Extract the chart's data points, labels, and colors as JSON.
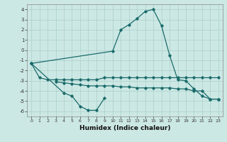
{
  "x": [
    0,
    1,
    2,
    3,
    4,
    5,
    6,
    7,
    8,
    9,
    10,
    11,
    12,
    13,
    14,
    15,
    16,
    17,
    18,
    19,
    20,
    21,
    22,
    23
  ],
  "line1_x": [
    0,
    1,
    2,
    3,
    4,
    5,
    6,
    7,
    8,
    9,
    10,
    11,
    12,
    13,
    14,
    15,
    16,
    17,
    18,
    19,
    20,
    21,
    22,
    23
  ],
  "line1_y": [
    -1.3,
    -2.7,
    -2.9,
    -2.9,
    -2.9,
    -2.9,
    -2.9,
    -2.9,
    -2.9,
    -2.7,
    -2.7,
    -2.7,
    -2.7,
    -2.7,
    -2.7,
    -2.7,
    -2.7,
    -2.7,
    -2.7,
    -2.7,
    -2.7,
    -2.7,
    -2.7,
    -2.7
  ],
  "line2_x": [
    3,
    4,
    5,
    6,
    7,
    8,
    9,
    10,
    11,
    12,
    13,
    14,
    15,
    16,
    17,
    18,
    19,
    20,
    21,
    22,
    23
  ],
  "line2_y": [
    -3.1,
    -3.2,
    -3.3,
    -3.4,
    -3.5,
    -3.5,
    -3.5,
    -3.5,
    -3.6,
    -3.6,
    -3.7,
    -3.7,
    -3.7,
    -3.7,
    -3.7,
    -3.8,
    -3.8,
    -4.0,
    -4.0,
    -4.8,
    -4.8
  ],
  "line3_x": [
    0,
    4,
    5,
    6,
    7,
    8,
    9
  ],
  "line3_y": [
    -1.3,
    -4.2,
    -4.5,
    -5.5,
    -5.9,
    -5.9,
    -4.7
  ],
  "line4_x": [
    0,
    10,
    11,
    12,
    13,
    14,
    15,
    16,
    17,
    18,
    19,
    20,
    21,
    22,
    23
  ],
  "line4_y": [
    -1.3,
    -0.1,
    2.0,
    2.5,
    3.1,
    3.8,
    4.0,
    2.4,
    -0.5,
    -2.9,
    -3.0,
    -3.8,
    -4.5,
    -4.8,
    -4.8
  ],
  "xlabel": "Humidex (Indice chaleur)",
  "ylim": [
    -6.5,
    4.5
  ],
  "xlim": [
    -0.5,
    23.5
  ],
  "bg_color": "#cce8e4",
  "line_color": "#1a6b6b",
  "grid_color": "#aacfca",
  "yticks": [
    -6,
    -5,
    -4,
    -3,
    -2,
    -1,
    0,
    1,
    2,
    3,
    4
  ],
  "xticks": [
    0,
    1,
    2,
    3,
    4,
    5,
    6,
    7,
    8,
    9,
    10,
    11,
    12,
    13,
    14,
    15,
    16,
    17,
    18,
    19,
    20,
    21,
    22,
    23
  ]
}
